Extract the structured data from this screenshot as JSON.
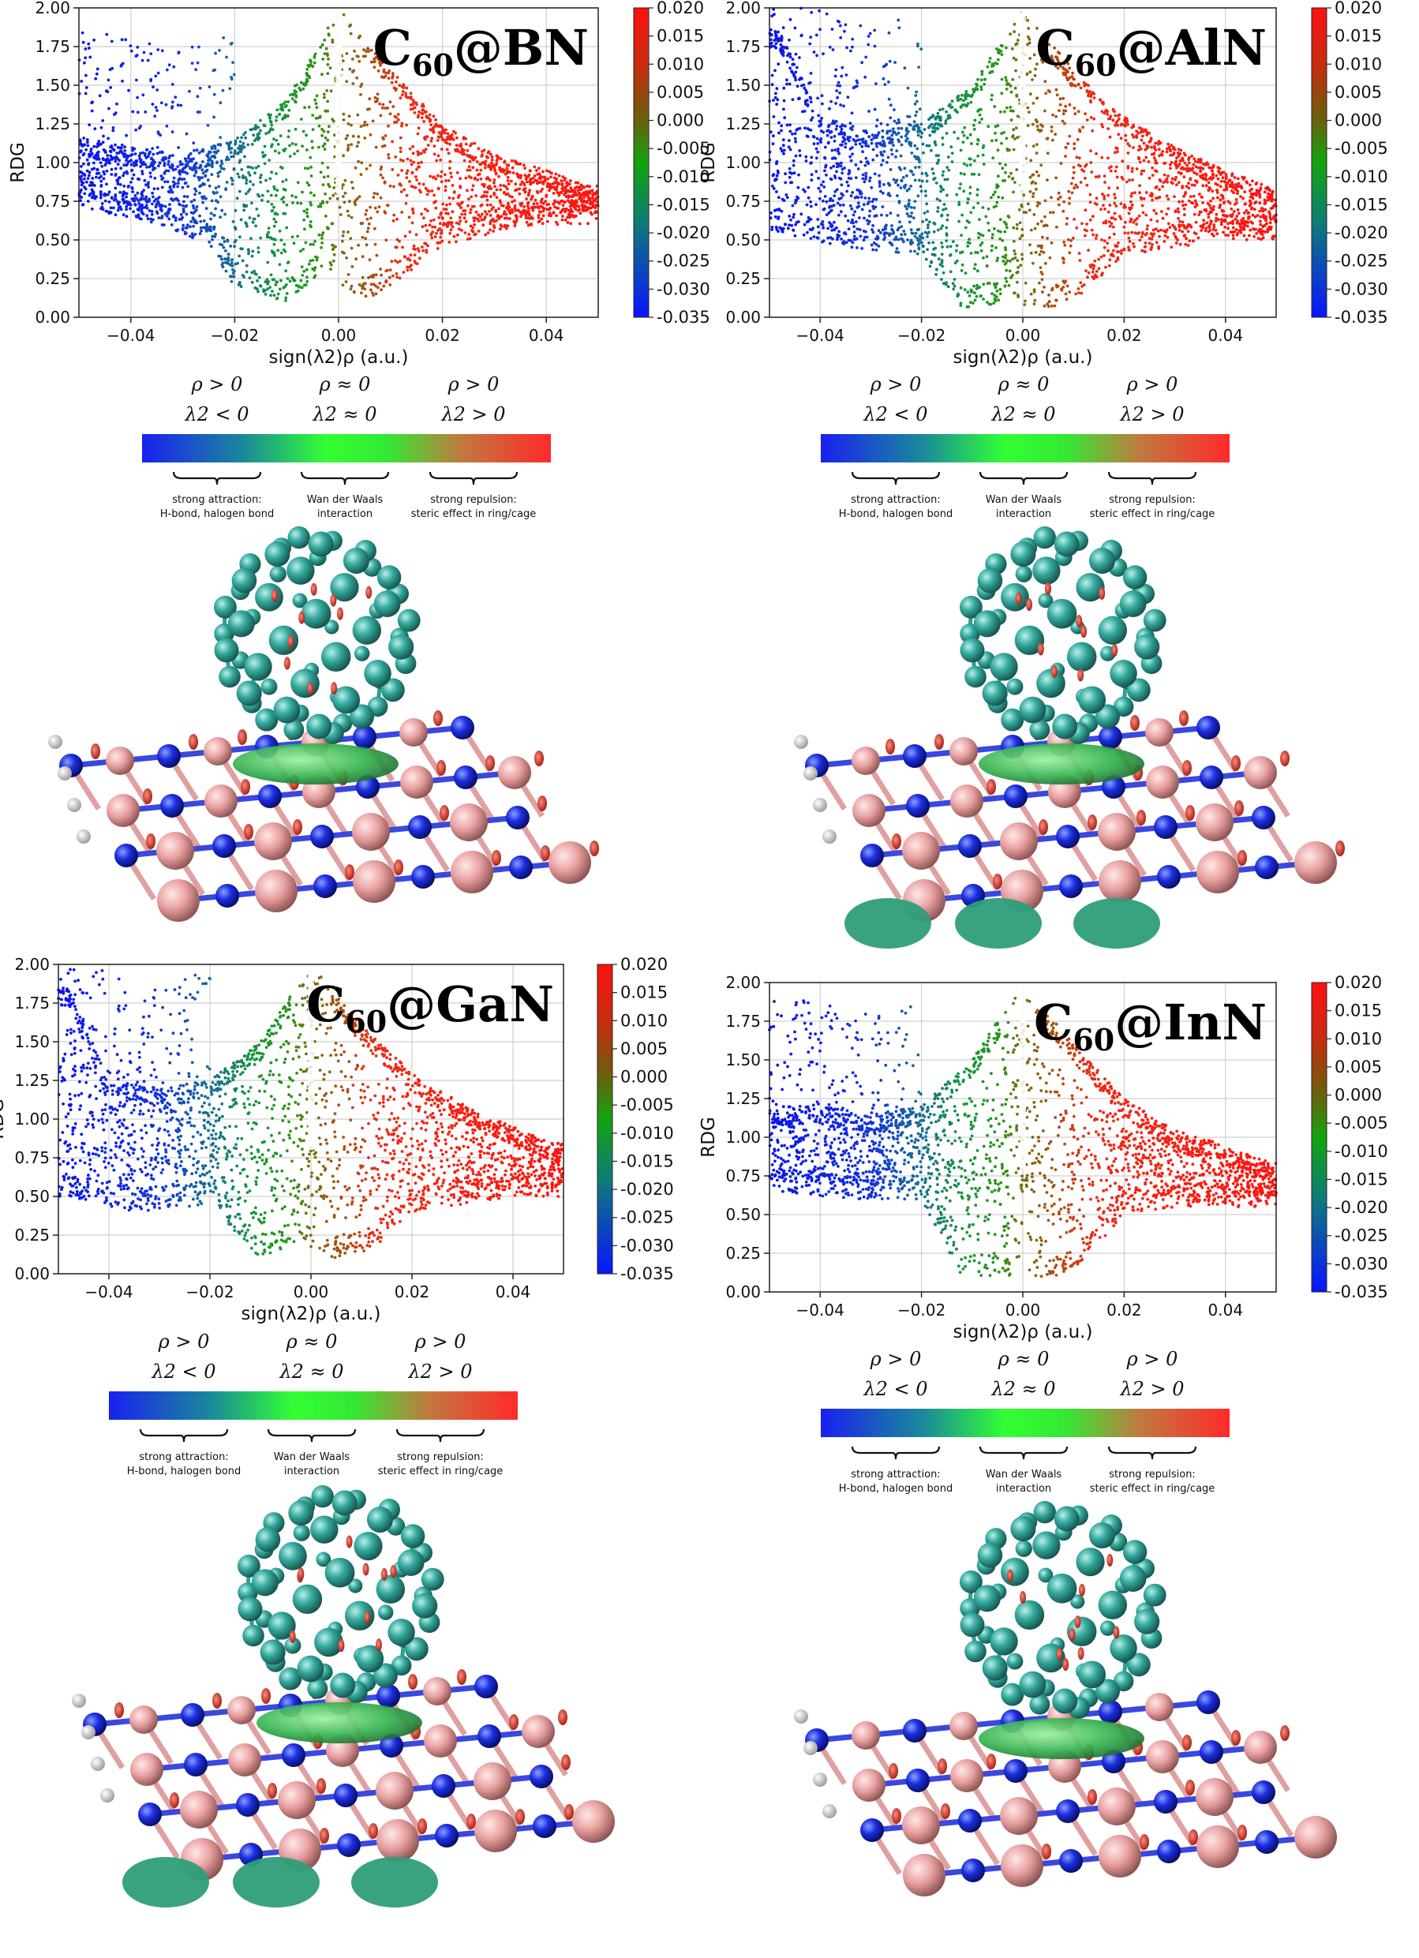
{
  "legend": {
    "col1_line1": "ρ > 0",
    "col1_line2": "λ2 < 0",
    "col2_line1": "ρ ≈ 0",
    "col2_line2": "λ2 ≈ 0",
    "col3_line1": "ρ > 0",
    "col3_line2": "λ2 > 0",
    "desc1_line1": "strong attraction:",
    "desc1_line2": "H-bond, halogen bond",
    "desc2_line1": "Wan der Waals",
    "desc2_line2": "interaction",
    "desc3_line1": "strong repulsion:",
    "desc3_line2": "steric effect in ring/cage"
  },
  "colors": {
    "blue": "#0a14e6",
    "green": "#13a40e",
    "bright_green": "#22ee22",
    "brown": "#9a5a0c",
    "red": "#ff1a10",
    "c60_cage": "#2f9e94",
    "atom_N": "#1426d0",
    "atom_B": "#e9a7a7",
    "atom_H": "#f2f2f2",
    "iso_green": "#3fbf60",
    "iso_red": "#d0241a"
  },
  "chart_data": [
    {
      "type": "scatter",
      "title_main": "C",
      "title_sub": "60",
      "title_rest": "@BN",
      "xlabel": "sign(λ2)ρ (a.u.)",
      "ylabel": "RDG",
      "xlim": [
        -0.05,
        0.05
      ],
      "ylim": [
        0,
        2
      ],
      "xticks": [
        "−0.04",
        "−0.02",
        "0.00",
        "0.02",
        "0.04"
      ],
      "xtick_values": [
        -0.04,
        -0.02,
        0.0,
        0.02,
        0.04
      ],
      "yticks": [
        "0.00",
        "0.25",
        "0.50",
        "0.75",
        "1.00",
        "1.25",
        "1.50",
        "1.75",
        "2.00"
      ],
      "ytick_values": [
        0,
        0.25,
        0.5,
        0.75,
        1.0,
        1.25,
        1.5,
        1.75,
        2.0
      ],
      "colorbar_ticks": [
        "0.020",
        "0.015",
        "0.010",
        "0.005",
        "0.000",
        "-0.005",
        "-0.010",
        "-0.015",
        "-0.020",
        "-0.025",
        "-0.030",
        "-0.035"
      ],
      "colorbar_range": [
        -0.035,
        0.02
      ],
      "grid": true,
      "series": [
        {
          "values": [
            [
              -0.048,
              1.15
            ],
            [
              -0.04,
              1.1
            ],
            [
              -0.03,
              1.05
            ],
            [
              -0.02,
              1.15
            ],
            [
              -0.01,
              1.4
            ],
            [
              0.0,
              2.0
            ],
            [
              0.01,
              1.6
            ],
            [
              0.02,
              1.25
            ],
            [
              0.03,
              1.05
            ],
            [
              0.04,
              0.95
            ],
            [
              0.048,
              0.85
            ]
          ]
        },
        {
          "values": [
            [
              -0.048,
              0.7
            ],
            [
              -0.035,
              0.6
            ],
            [
              -0.025,
              0.45
            ],
            [
              -0.02,
              0.2
            ],
            [
              -0.01,
              0.1
            ],
            [
              -0.003,
              0.3
            ],
            [
              0.005,
              0.1
            ],
            [
              0.012,
              0.25
            ],
            [
              0.02,
              0.45
            ],
            [
              0.03,
              0.55
            ],
            [
              0.04,
              0.6
            ],
            [
              0.048,
              0.6
            ]
          ]
        }
      ]
    },
    {
      "type": "scatter",
      "title_main": "C",
      "title_sub": "60",
      "title_rest": "@AlN",
      "xlabel": "sign(λ2)ρ (a.u.)",
      "ylabel": "RDG",
      "xlim": [
        -0.05,
        0.05
      ],
      "ylim": [
        0,
        2
      ],
      "xticks": [
        "−0.04",
        "−0.02",
        "0.00",
        "0.02",
        "0.04"
      ],
      "xtick_values": [
        -0.04,
        -0.02,
        0.0,
        0.02,
        0.04
      ],
      "yticks": [
        "0.00",
        "0.25",
        "0.50",
        "0.75",
        "1.00",
        "1.25",
        "1.50",
        "1.75",
        "2.00"
      ],
      "ytick_values": [
        0,
        0.25,
        0.5,
        0.75,
        1.0,
        1.25,
        1.5,
        1.75,
        2.0
      ],
      "colorbar_ticks": [
        "0.020",
        "0.015",
        "0.010",
        "0.005",
        "0.000",
        "-0.005",
        "-0.010",
        "-0.015",
        "-0.020",
        "-0.025",
        "-0.030",
        "-0.035"
      ],
      "colorbar_range": [
        -0.035,
        0.02
      ],
      "grid": true,
      "series": [
        {
          "values": [
            [
              -0.048,
              1.85
            ],
            [
              -0.04,
              1.3
            ],
            [
              -0.03,
              1.2
            ],
            [
              -0.02,
              1.25
            ],
            [
              -0.01,
              1.5
            ],
            [
              0.0,
              2.0
            ],
            [
              0.01,
              1.6
            ],
            [
              0.02,
              1.3
            ],
            [
              0.03,
              1.1
            ],
            [
              0.04,
              0.95
            ],
            [
              0.048,
              0.85
            ]
          ]
        },
        {
          "values": [
            [
              -0.048,
              0.55
            ],
            [
              -0.035,
              0.45
            ],
            [
              -0.02,
              0.4
            ],
            [
              -0.012,
              0.05
            ],
            [
              -0.003,
              0.1
            ],
            [
              0.005,
              0.05
            ],
            [
              0.012,
              0.15
            ],
            [
              0.02,
              0.4
            ],
            [
              0.03,
              0.45
            ],
            [
              0.04,
              0.5
            ],
            [
              0.048,
              0.5
            ]
          ]
        }
      ]
    },
    {
      "type": "scatter",
      "title_main": "C",
      "title_sub": "60",
      "title_rest": "@GaN",
      "xlabel": "sign(λ2)ρ (a.u.)",
      "ylabel": "RDG",
      "xlim": [
        -0.05,
        0.05
      ],
      "ylim": [
        0,
        2
      ],
      "xticks": [
        "−0.04",
        "−0.02",
        "0.00",
        "0.02",
        "0.04"
      ],
      "xtick_values": [
        -0.04,
        -0.02,
        0.0,
        0.02,
        0.04
      ],
      "yticks": [
        "0.00",
        "0.25",
        "0.50",
        "0.75",
        "1.00",
        "1.25",
        "1.50",
        "1.75",
        "2.00"
      ],
      "ytick_values": [
        0,
        0.25,
        0.5,
        0.75,
        1.0,
        1.25,
        1.5,
        1.75,
        2.0
      ],
      "colorbar_ticks": [
        "0.020",
        "0.015",
        "0.010",
        "0.005",
        "0.000",
        "-0.005",
        "-0.010",
        "-0.015",
        "-0.020",
        "-0.025",
        "-0.030",
        "-0.035"
      ],
      "colorbar_range": [
        -0.035,
        0.02
      ],
      "grid": true,
      "series": [
        {
          "values": [
            [
              -0.048,
              1.85
            ],
            [
              -0.04,
              1.25
            ],
            [
              -0.03,
              1.2
            ],
            [
              -0.02,
              1.25
            ],
            [
              -0.01,
              1.5
            ],
            [
              0.0,
              2.0
            ],
            [
              0.01,
              1.6
            ],
            [
              0.02,
              1.3
            ],
            [
              0.03,
              1.1
            ],
            [
              0.04,
              0.95
            ],
            [
              0.048,
              0.85
            ]
          ]
        },
        {
          "values": [
            [
              -0.048,
              0.5
            ],
            [
              -0.035,
              0.4
            ],
            [
              -0.02,
              0.45
            ],
            [
              -0.01,
              0.1
            ],
            [
              -0.003,
              0.2
            ],
            [
              0.005,
              0.1
            ],
            [
              0.012,
              0.15
            ],
            [
              0.02,
              0.4
            ],
            [
              0.03,
              0.45
            ],
            [
              0.04,
              0.5
            ],
            [
              0.048,
              0.5
            ]
          ]
        }
      ]
    },
    {
      "type": "scatter",
      "title_main": "C",
      "title_sub": "60",
      "title_rest": "@InN",
      "xlabel": "sign(λ2)ρ (a.u.)",
      "ylabel": "RDG",
      "xlim": [
        -0.05,
        0.05
      ],
      "ylim": [
        0,
        2
      ],
      "xticks": [
        "−0.04",
        "−0.02",
        "0.00",
        "0.02",
        "0.04"
      ],
      "xtick_values": [
        -0.04,
        -0.02,
        0.0,
        0.02,
        0.04
      ],
      "yticks": [
        "0.00",
        "0.25",
        "0.50",
        "0.75",
        "1.00",
        "1.25",
        "1.50",
        "1.75",
        "2.00"
      ],
      "ytick_values": [
        0,
        0.25,
        0.5,
        0.75,
        1.0,
        1.25,
        1.5,
        1.75,
        2.0
      ],
      "colorbar_ticks": [
        "0.020",
        "0.015",
        "0.010",
        "0.005",
        "0.000",
        "-0.005",
        "-0.010",
        "-0.015",
        "-0.020",
        "-0.025",
        "-0.030",
        "-0.035"
      ],
      "colorbar_range": [
        -0.035,
        0.02
      ],
      "grid": true,
      "series": [
        {
          "values": [
            [
              -0.048,
              1.2
            ],
            [
              -0.04,
              1.2
            ],
            [
              -0.03,
              1.15
            ],
            [
              -0.02,
              1.2
            ],
            [
              -0.01,
              1.5
            ],
            [
              0.0,
              2.0
            ],
            [
              0.01,
              1.6
            ],
            [
              0.02,
              1.25
            ],
            [
              0.03,
              1.05
            ],
            [
              0.04,
              0.95
            ],
            [
              0.048,
              0.85
            ]
          ]
        },
        {
          "values": [
            [
              -0.048,
              0.65
            ],
            [
              -0.035,
              0.6
            ],
            [
              -0.02,
              0.6
            ],
            [
              -0.012,
              0.1
            ],
            [
              -0.003,
              0.1
            ],
            [
              0.005,
              0.05
            ],
            [
              0.012,
              0.2
            ],
            [
              0.02,
              0.5
            ],
            [
              0.03,
              0.55
            ],
            [
              0.04,
              0.55
            ],
            [
              0.048,
              0.55
            ]
          ]
        }
      ]
    }
  ]
}
